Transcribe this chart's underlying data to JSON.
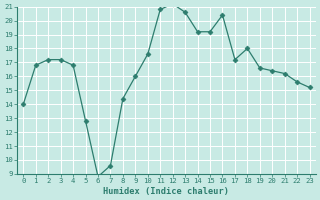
{
  "x": [
    0,
    1,
    2,
    3,
    4,
    5,
    6,
    7,
    8,
    9,
    10,
    11,
    12,
    13,
    14,
    15,
    16,
    17,
    18,
    19,
    20,
    21,
    22,
    23
  ],
  "y": [
    14,
    16.8,
    17.2,
    17.2,
    16.8,
    12.8,
    8.8,
    9.6,
    14.4,
    16.0,
    17.6,
    20.8,
    21.2,
    20.6,
    19.2,
    19.2,
    20.4,
    17.2,
    18.0,
    16.6,
    16.4,
    16.2,
    15.6,
    15.2
  ],
  "line_color": "#2d7d6e",
  "marker": "D",
  "marker_size": 2.5,
  "bg_color": "#c8eae4",
  "grid_color_major": "#ffffff",
  "grid_color_minor": "#d8ede9",
  "xlabel": "Humidex (Indice chaleur)",
  "ylim": [
    9,
    21
  ],
  "xlim": [
    -0.5,
    23.5
  ],
  "yticks": [
    9,
    10,
    11,
    12,
    13,
    14,
    15,
    16,
    17,
    18,
    19,
    20,
    21
  ],
  "xticks": [
    0,
    1,
    2,
    3,
    4,
    5,
    6,
    7,
    8,
    9,
    10,
    11,
    12,
    13,
    14,
    15,
    16,
    17,
    18,
    19,
    20,
    21,
    22,
    23
  ],
  "tick_color": "#2d7d6e",
  "label_color": "#2d7d6e",
  "font_family": "monospace",
  "tick_fontsize": 5.2,
  "xlabel_fontsize": 6.2
}
